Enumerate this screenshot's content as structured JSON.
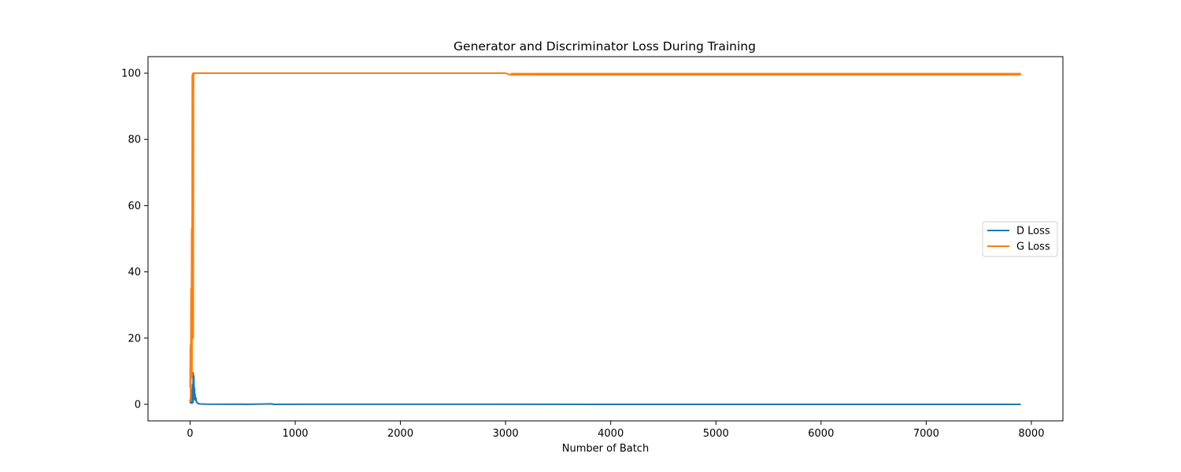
{
  "chart_data": {
    "type": "line",
    "title": "Generator and Discriminator Loss During Training",
    "xlabel": "Number of Batch",
    "ylabel": "",
    "xlim": [
      -400,
      8300
    ],
    "ylim": [
      -5,
      105
    ],
    "xticks": [
      0,
      1000,
      2000,
      3000,
      4000,
      5000,
      6000,
      7000,
      8000
    ],
    "yticks": [
      0,
      20,
      40,
      60,
      80,
      100
    ],
    "grid": false,
    "legend_position": "center-right",
    "series": [
      {
        "name": "D Loss",
        "color": "#1f77b4",
        "points": [
          [
            0,
            1.5
          ],
          [
            3,
            0.5
          ],
          [
            6,
            3.0
          ],
          [
            9,
            0.8
          ],
          [
            12,
            2.0
          ],
          [
            15,
            0.3
          ],
          [
            18,
            4.5
          ],
          [
            21,
            1.0
          ],
          [
            24,
            6.0
          ],
          [
            27,
            0.5
          ],
          [
            30,
            9.5
          ],
          [
            33,
            2.0
          ],
          [
            36,
            8.5
          ],
          [
            39,
            1.5
          ],
          [
            42,
            5.0
          ],
          [
            45,
            2.5
          ],
          [
            48,
            3.0
          ],
          [
            51,
            1.2
          ],
          [
            55,
            2.0
          ],
          [
            60,
            0.8
          ],
          [
            70,
            0.4
          ],
          [
            80,
            0.2
          ],
          [
            100,
            0.1
          ],
          [
            150,
            0.05
          ],
          [
            300,
            0.02
          ],
          [
            520,
            0.05
          ],
          [
            530,
            0.0
          ],
          [
            780,
            0.15
          ],
          [
            790,
            0.0
          ],
          [
            1100,
            0.03
          ],
          [
            2000,
            0.01
          ],
          [
            4000,
            0.0
          ],
          [
            6000,
            0.0
          ],
          [
            7900,
            0.0
          ]
        ]
      },
      {
        "name": "G Loss",
        "color": "#ff7f0e",
        "points": [
          [
            0,
            5
          ],
          [
            3,
            18
          ],
          [
            6,
            1
          ],
          [
            9,
            35
          ],
          [
            12,
            10
          ],
          [
            15,
            53
          ],
          [
            18,
            8
          ],
          [
            21,
            99.5
          ],
          [
            24,
            25
          ],
          [
            27,
            100
          ],
          [
            30,
            20
          ],
          [
            33,
            100
          ],
          [
            36,
            99.5
          ],
          [
            40,
            100
          ],
          [
            60,
            100
          ],
          [
            200,
            100
          ],
          [
            1000,
            100
          ],
          [
            2000,
            100
          ],
          [
            3000,
            100
          ],
          [
            3050,
            99.5
          ],
          [
            3100,
            99.8
          ],
          [
            4000,
            99.7
          ],
          [
            5000,
            99.7
          ],
          [
            6000,
            99.7
          ],
          [
            7000,
            99.7
          ],
          [
            7900,
            99.7
          ]
        ]
      }
    ]
  }
}
